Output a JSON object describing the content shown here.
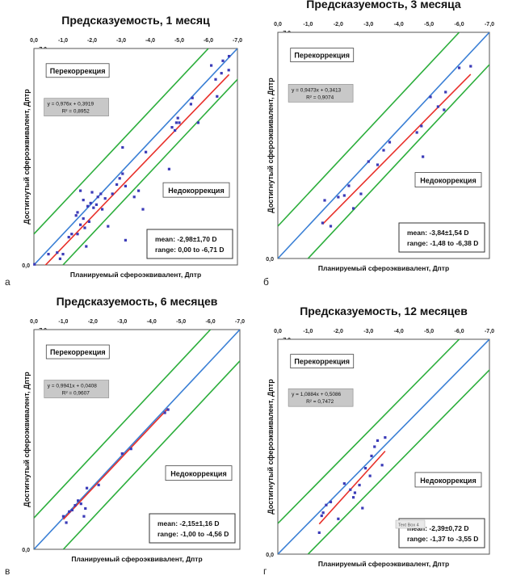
{
  "letters": [
    "а",
    "б",
    "в",
    "г"
  ],
  "chart_data": [
    {
      "type": "scatter",
      "title": "Предсказуемость, 1 месяц",
      "xlabel": "Планируемый сфероэквивалент, Дптр",
      "ylabel": "Достигнутый сфероэквивалент, Дптр",
      "xlim": [
        0,
        -7
      ],
      "ylim": [
        0,
        -7
      ],
      "x_ticks": [
        "0,0",
        "-1,0",
        "-2,0",
        "-3,0",
        "-4,0",
        "-5,0",
        "-6,0",
        "-7,0"
      ],
      "y_ticks": [
        "0,0",
        "-1,0",
        "-2,0",
        "-3,0",
        "-4,0",
        "-5,0",
        "-6,0",
        "-7,0"
      ],
      "over_label": "Перекоррекция",
      "under_label": "Недокоррекция",
      "equation": "y = 0,976x + 0,3919",
      "r2": "R² = 0,8952",
      "stats_mean": "mean: -2,98±1,70 D",
      "stats_range": "range: 0,00 to -6,71 D",
      "colors": {
        "identity": "#3a7fd5",
        "bounds": "#2cae3c",
        "trend": "#e8302a",
        "points": "#3b3bb8"
      },
      "trend": {
        "slope": 0.976,
        "intercept": 0.3919
      },
      "points": [
        [
          -0.02,
          -0.02
        ],
        [
          -0.5,
          -0.35
        ],
        [
          -0.8,
          -0.4
        ],
        [
          -1.0,
          -0.35
        ],
        [
          -0.9,
          -0.2
        ],
        [
          -1.2,
          -0.9
        ],
        [
          -1.3,
          -1.0
        ],
        [
          -1.5,
          -1.0
        ],
        [
          -1.45,
          -1.6
        ],
        [
          -1.5,
          -1.7
        ],
        [
          -1.6,
          -1.3
        ],
        [
          -1.7,
          -1.5
        ],
        [
          -1.9,
          -1.4
        ],
        [
          -1.8,
          -0.6
        ],
        [
          -1.6,
          -2.4
        ],
        [
          -1.7,
          -2.1
        ],
        [
          -1.85,
          -1.9
        ],
        [
          -1.95,
          -2.0
        ],
        [
          -2.05,
          -1.85
        ],
        [
          -2.15,
          -1.95
        ],
        [
          -2.2,
          -2.2
        ],
        [
          -2.3,
          -2.3
        ],
        [
          -2.35,
          -1.8
        ],
        [
          -2.45,
          -2.15
        ],
        [
          -2.55,
          -1.25
        ],
        [
          -1.75,
          -1.2
        ],
        [
          -2.0,
          -2.35
        ],
        [
          -2.7,
          -2.3
        ],
        [
          -2.85,
          -2.6
        ],
        [
          -2.95,
          -2.8
        ],
        [
          -3.05,
          -2.95
        ],
        [
          -3.15,
          -2.55
        ],
        [
          -3.05,
          -3.8
        ],
        [
          -3.15,
          -0.8
        ],
        [
          -3.45,
          -2.2
        ],
        [
          -3.6,
          -2.4
        ],
        [
          -3.75,
          -1.8
        ],
        [
          -3.85,
          -3.65
        ],
        [
          -4.65,
          -3.1
        ],
        [
          -4.75,
          -4.45
        ],
        [
          -4.85,
          -4.35
        ],
        [
          -4.9,
          -4.6
        ],
        [
          -5.0,
          -4.6
        ],
        [
          -4.95,
          -4.75
        ],
        [
          -5.4,
          -5.2
        ],
        [
          -5.45,
          -5.4
        ],
        [
          -5.65,
          -4.6
        ],
        [
          -6.1,
          -6.45
        ],
        [
          -6.3,
          -5.45
        ],
        [
          -6.5,
          -6.6
        ],
        [
          -6.45,
          -6.2
        ],
        [
          -6.7,
          -6.3
        ],
        [
          -6.71,
          -6.75
        ],
        [
          -6.25,
          -6.0
        ]
      ]
    },
    {
      "type": "scatter",
      "title": "Предсказуемость,  3 месяца",
      "xlabel": "Планируемый сфероэквивалент, Дптр",
      "ylabel": "Достигнутый сфероэквивалент, Дптр",
      "xlim": [
        0,
        -7
      ],
      "ylim": [
        0,
        -7
      ],
      "x_ticks": [
        "0,0",
        "-1,0",
        "-2,0",
        "-3,0",
        "-4,0",
        "-5,0",
        "-6,0",
        "-7,0"
      ],
      "y_ticks": [
        "0,0",
        "-1,0",
        "-2,0",
        "-3,0",
        "-4,0",
        "-5,0",
        "-6,0",
        "-7,0"
      ],
      "over_label": "Перекоррекция",
      "under_label": "Недокоррекция",
      "equation": "y = 0,9473x + 0,3413",
      "r2": "R² = 0,9074",
      "stats_mean": "mean: -3,84±1,54 D",
      "stats_range": "range: -1,48 to -6,38 D",
      "colors": {
        "identity": "#3a7fd5",
        "bounds": "#2cae3c",
        "trend": "#e8302a",
        "points": "#3b3bb8"
      },
      "trend": {
        "slope": 0.9473,
        "intercept": 0.3413
      },
      "points": [
        [
          -1.48,
          -1.1
        ],
        [
          -1.55,
          -1.8
        ],
        [
          -1.75,
          -1.0
        ],
        [
          -2.0,
          -1.9
        ],
        [
          -2.2,
          -1.95
        ],
        [
          -2.35,
          -2.25
        ],
        [
          -2.5,
          -1.55
        ],
        [
          -2.75,
          -2.0
        ],
        [
          -3.0,
          -3.0
        ],
        [
          -3.3,
          -2.9
        ],
        [
          -3.5,
          -3.35
        ],
        [
          -3.7,
          -3.6
        ],
        [
          -4.6,
          -3.9
        ],
        [
          -4.75,
          -4.1
        ],
        [
          -4.8,
          -3.15
        ],
        [
          -5.05,
          -5.0
        ],
        [
          -5.3,
          -4.7
        ],
        [
          -5.5,
          -4.6
        ],
        [
          -5.55,
          -5.15
        ],
        [
          -6.0,
          -5.9
        ],
        [
          -6.38,
          -5.95
        ]
      ]
    },
    {
      "type": "scatter",
      "title": "Предсказуемость, 6 месяцев",
      "xlabel": "Планируемый сфероэквивалент, Дптр",
      "ylabel": "Достигнутый сфероэквивалент, Дптр",
      "xlim": [
        0,
        -7
      ],
      "ylim": [
        0,
        -7
      ],
      "x_ticks": [
        "0,0",
        "-1,0",
        "-2,0",
        "-3,0",
        "-4,0",
        "-5,0",
        "-6,0",
        "-7,0"
      ],
      "y_ticks": [
        "0,0",
        "-1,0",
        "-2,0",
        "-3,0",
        "-4,0",
        "-5,0",
        "-6,0",
        "-7,0"
      ],
      "over_label": "Перекоррекция",
      "under_label": "Недокоррекция",
      "equation": "y = 0,9941x + 0,0408",
      "r2": "R² = 0,9607",
      "stats_mean": "mean: -2,15±1,16 D",
      "stats_range": "range: -1,00 to -4,56 D",
      "colors": {
        "identity": "#3a7fd5",
        "bounds": "#2cae3c",
        "trend": "#e8302a",
        "points": "#3b3bb8"
      },
      "trend": {
        "slope": 0.9941,
        "intercept": 0.0408
      },
      "points": [
        [
          -1.0,
          -1.05
        ],
        [
          -1.1,
          -0.85
        ],
        [
          -1.2,
          -1.2
        ],
        [
          -1.3,
          -1.25
        ],
        [
          -1.4,
          -1.4
        ],
        [
          -1.5,
          -1.55
        ],
        [
          -1.6,
          -1.45
        ],
        [
          -1.7,
          -1.05
        ],
        [
          -1.75,
          -1.3
        ],
        [
          -1.8,
          -1.95
        ],
        [
          -2.2,
          -2.05
        ],
        [
          -3.0,
          -3.05
        ],
        [
          -3.3,
          -3.2
        ],
        [
          -4.45,
          -4.35
        ],
        [
          -4.56,
          -4.45
        ]
      ]
    },
    {
      "type": "scatter",
      "title": "Предсказуемость,  12 месяцев",
      "xlabel": "Планируемый сфероэквивалент, Дптр",
      "ylabel": "Достигнутый сфероэквивалент, Дптр",
      "xlim": [
        0,
        -7
      ],
      "ylim": [
        0,
        -7
      ],
      "x_ticks": [
        "0,0",
        "-1,0",
        "-2,0",
        "-3,0",
        "-4,0",
        "-5,0",
        "-6,0",
        "-7,0"
      ],
      "y_ticks": [
        "0,0",
        "-1,0",
        "-2,0",
        "-3,0",
        "-4,0",
        "-5,0",
        "-6,0",
        "-7,0"
      ],
      "over_label": "Перекоррекция",
      "under_label": "Недокоррекция",
      "equation": "y = 1,0884x + 0,5086",
      "r2": "R² = 0,7472",
      "stats_mean": "mean: -2,39±0,72 D",
      "stats_range": "range: -1,37 to -3,55 D",
      "text_box_label": "Text Box 4",
      "colors": {
        "identity": "#3a7fd5",
        "bounds": "#2cae3c",
        "trend": "#e8302a",
        "points": "#3b3bb8"
      },
      "trend": {
        "slope": 1.0884,
        "intercept": 0.5086
      },
      "points": [
        [
          -1.37,
          -0.7
        ],
        [
          -1.45,
          -1.25
        ],
        [
          -1.5,
          -1.35
        ],
        [
          -1.6,
          -1.6
        ],
        [
          -1.75,
          -1.7
        ],
        [
          -2.0,
          -1.15
        ],
        [
          -2.2,
          -2.3
        ],
        [
          -2.4,
          -2.1
        ],
        [
          -2.5,
          -1.85
        ],
        [
          -2.55,
          -2.0
        ],
        [
          -2.7,
          -2.25
        ],
        [
          -2.8,
          -1.5
        ],
        [
          -2.9,
          -2.8
        ],
        [
          -3.05,
          -2.55
        ],
        [
          -3.1,
          -3.2
        ],
        [
          -3.2,
          -3.5
        ],
        [
          -3.3,
          -3.7
        ],
        [
          -3.45,
          -2.9
        ],
        [
          -3.55,
          -3.8
        ]
      ]
    }
  ]
}
